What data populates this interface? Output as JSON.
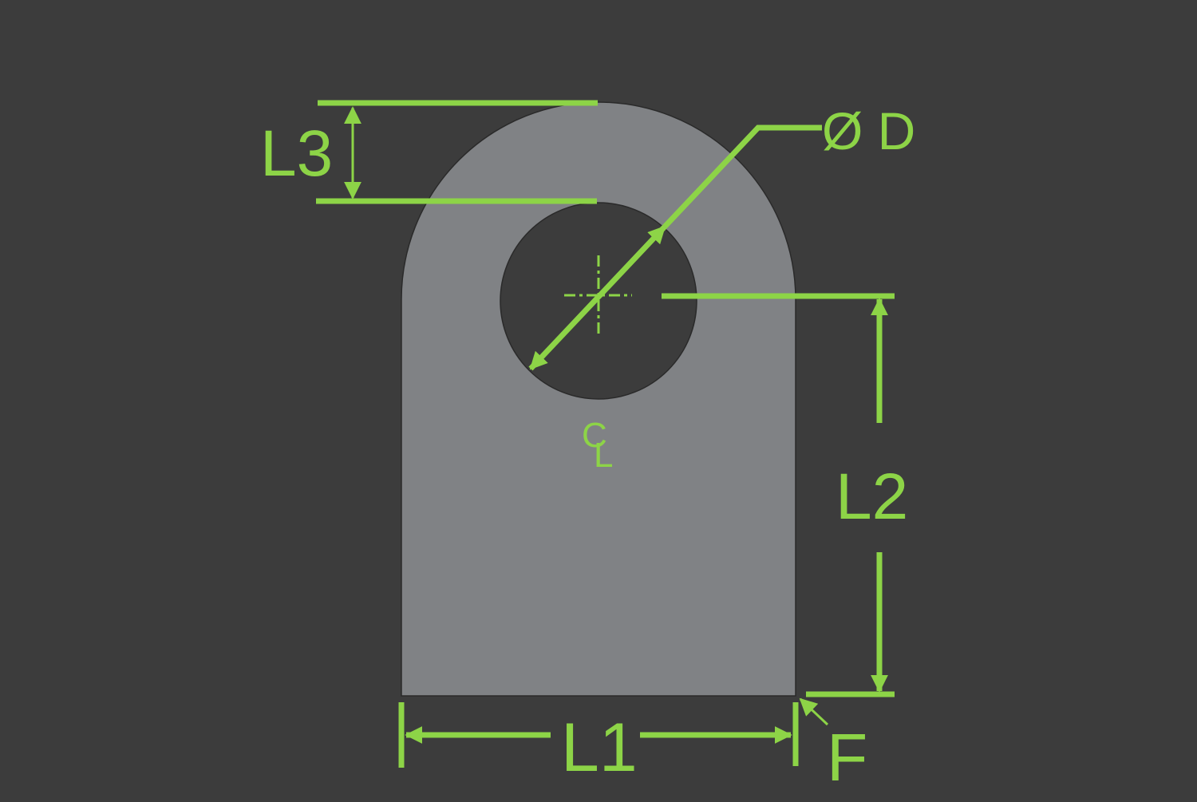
{
  "colors": {
    "background": "#3c3c3c",
    "part": "#808285",
    "part_edge": "#2a2a2a",
    "dimension": "#8dd447"
  },
  "labels": {
    "l1": "L1",
    "l2": "L2",
    "l3": "L3",
    "diameter": "Ø D",
    "fillet": "F",
    "centerline_c": "C",
    "centerline_l": "L"
  }
}
